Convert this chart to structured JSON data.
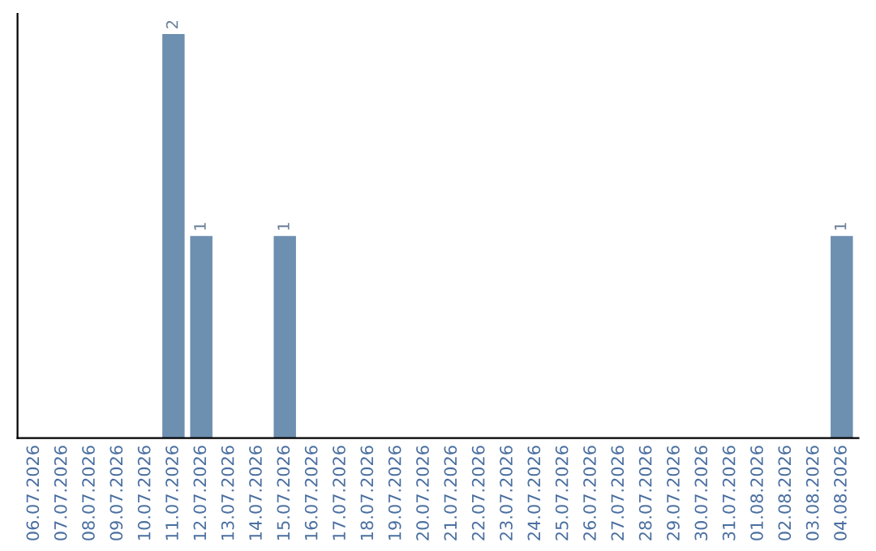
{
  "chart_data": {
    "type": "bar",
    "categories": [
      "06.07.2026",
      "07.07.2026",
      "08.07.2026",
      "09.07.2026",
      "10.07.2026",
      "11.07.2026",
      "12.07.2026",
      "13.07.2026",
      "14.07.2026",
      "15.07.2026",
      "16.07.2026",
      "17.07.2026",
      "18.07.2026",
      "19.07.2026",
      "20.07.2026",
      "21.07.2026",
      "22.07.2026",
      "23.07.2026",
      "24.07.2026",
      "25.07.2026",
      "26.07.2026",
      "27.07.2026",
      "28.07.2026",
      "29.07.2026",
      "30.07.2026",
      "31.07.2026",
      "01.08.2026",
      "02.08.2026",
      "03.08.2026",
      "04.08.2026"
    ],
    "values": [
      0,
      0,
      0,
      0,
      0,
      2,
      1,
      0,
      0,
      1,
      0,
      0,
      0,
      0,
      0,
      0,
      0,
      0,
      0,
      0,
      0,
      0,
      0,
      0,
      0,
      0,
      0,
      0,
      0,
      1
    ],
    "value_labels": [
      null,
      null,
      null,
      null,
      null,
      "2",
      "1",
      null,
      null,
      "1",
      null,
      null,
      null,
      null,
      null,
      null,
      null,
      null,
      null,
      null,
      null,
      null,
      null,
      null,
      null,
      null,
      null,
      null,
      null,
      "1"
    ],
    "color": "#6d8fb0",
    "tick_labels": "x",
    "grid": false,
    "legend": false
  }
}
